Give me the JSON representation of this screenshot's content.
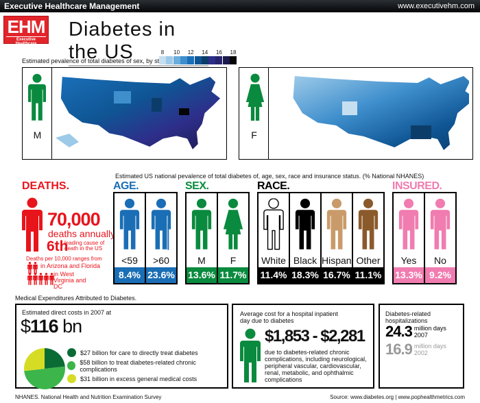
{
  "header": {
    "left": "Executive Healthcare Management",
    "right": "www.executivehm.com"
  },
  "logo": {
    "big": "EHM",
    "small": "Executive Healthcare"
  },
  "title": "Diabetes in the US",
  "state_map": {
    "caption": "Estimated pevalence of total diabetes of sex, by state. (%)",
    "legend_labels": [
      "8",
      "10",
      "12",
      "14",
      "16",
      "18"
    ],
    "legend_colors": [
      "#c6dff0",
      "#9dcae9",
      "#6aaedd",
      "#3f8fcd",
      "#1a6fb8",
      "#0f5594",
      "#0c3d6a",
      "#2e2e8a",
      "#26246e",
      "#1c1a4e",
      "#050505"
    ],
    "male_label": "M",
    "female_label": "F"
  },
  "national_caption": "Estimated US national pevalence of total diabetes of, age, sex, race and insurance status. (% National NHANES)",
  "deaths": {
    "title": "DEATHS.",
    "count": "70,000",
    "annual": "deaths annually",
    "rank": "6th",
    "rank_text": "leading cause of death in the US",
    "range_intro": "Deaths per 10,000 ranges from",
    "low": "in Arizona and Florida",
    "high": "in West Virginia and DC"
  },
  "groups": {
    "age": {
      "title": "AGE.",
      "color": "#1a6eb5",
      "cells": [
        {
          "label": "<59",
          "value": "8.4%"
        },
        {
          "label": ">60",
          "value": "23.6%"
        }
      ]
    },
    "sex": {
      "title": "SEX.",
      "color": "#0a8a3e",
      "cells": [
        {
          "label": "M",
          "value": "13.6%"
        },
        {
          "label": "F",
          "value": "11.7%"
        }
      ]
    },
    "race": {
      "title": "RACE.",
      "color": "#000000",
      "cells": [
        {
          "label": "White",
          "value": "11.4%"
        },
        {
          "label": "Black",
          "value": "18.3%"
        },
        {
          "label": "Hispanic",
          "value": "16.7%"
        },
        {
          "label": "Other",
          "value": "11.1%"
        }
      ]
    },
    "insured": {
      "title": "INSURED.",
      "color": "#f07cb0",
      "cells": [
        {
          "label": "Yes",
          "value": "13.3%"
        },
        {
          "label": "No",
          "value": "9.2%"
        }
      ]
    }
  },
  "expenditures": {
    "caption": "Medical Expenditures Attributed to Diabetes.",
    "intro": "Estimated direct costs in 2007 at",
    "total_dollar": "$",
    "total_num": "116",
    "total_unit": "bn",
    "items": [
      {
        "text": "$27 billion for care to directly treat diabetes",
        "color": "#0b6b35"
      },
      {
        "text": "$58 billion to treat diabetes-related chronic complications",
        "color": "#3cb54a"
      },
      {
        "text": "$31 billion in excess general medical costs",
        "color": "#d6dc24"
      }
    ]
  },
  "inpatient": {
    "intro": "Average cost for a hospital inpatient day due to diabetes",
    "range": "$1,853 - $2,281",
    "desc": "due to diabetes-related chronic complications, including neurological, peripheral vascular, cardiovascular, renal, metabolic, and ophthalmic complications"
  },
  "hospitalizations": {
    "title": "Diabetes-related hospitalizations",
    "rows": [
      {
        "num": "24.3",
        "unit": "million days",
        "year": "2007"
      },
      {
        "num": "16.9",
        "unit": "million days",
        "year": "2002"
      }
    ]
  },
  "footer": {
    "left": "NHANES. National Health and Nutrition Examination Survey",
    "right": "Source: www.diabetes.org | www.pophealthmetrics.com"
  },
  "chart_data": {
    "type": "pie",
    "title": "Estimated direct costs in 2007 at $116 bn",
    "categories": [
      "Care to directly treat diabetes",
      "Diabetes-related chronic complications",
      "Excess general medical costs"
    ],
    "values": [
      27,
      58,
      31
    ],
    "unit": "billion USD",
    "prevalence": {
      "type": "table",
      "age": {
        "<59": 8.4,
        ">60": 23.6
      },
      "sex": {
        "M": 13.6,
        "F": 11.7
      },
      "race": {
        "White": 11.4,
        "Black": 18.3,
        "Hispanic": 16.7,
        "Other": 11.1
      },
      "insured": {
        "Yes": 13.3,
        "No": 9.2
      }
    }
  }
}
